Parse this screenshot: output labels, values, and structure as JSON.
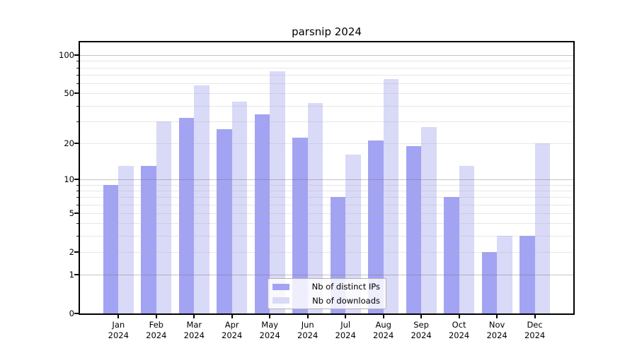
{
  "chart_data": {
    "type": "bar",
    "title": "parsnip 2024",
    "categories": [
      "Jan",
      "Feb",
      "Mar",
      "Apr",
      "May",
      "Jun",
      "Jul",
      "Aug",
      "Sep",
      "Oct",
      "Nov",
      "Dec"
    ],
    "category_year": "2024",
    "series": [
      {
        "name": "Nb of distinct IPs",
        "color": "#a3a3f3",
        "values": [
          9,
          13,
          32,
          26,
          34,
          22,
          7,
          21,
          19,
          7,
          2,
          3
        ]
      },
      {
        "name": "Nb of downloads",
        "color": "#d9d9f8",
        "values": [
          13,
          30,
          58,
          43,
          75,
          42,
          16,
          65,
          27,
          13,
          3,
          20
        ]
      }
    ],
    "xlabel": "",
    "ylabel": "",
    "yscale": "log1p",
    "ylim": [
      0,
      126
    ],
    "y_ticks_labeled": [
      0,
      1,
      2,
      5,
      10,
      20,
      50,
      100
    ],
    "y_gridlines_major": [
      1,
      10,
      100
    ],
    "y_gridlines_minor": [
      2,
      3,
      4,
      5,
      6,
      7,
      8,
      9,
      20,
      30,
      40,
      50,
      60,
      70,
      80,
      90
    ],
    "grid": true,
    "legend_position": "lower center"
  },
  "colors": {
    "background": "#ffffff",
    "spine": "#000000",
    "grid_major": "#c2c2c2",
    "grid_minor": "#e9e9e9",
    "legend_border": "#b3b3b3"
  }
}
